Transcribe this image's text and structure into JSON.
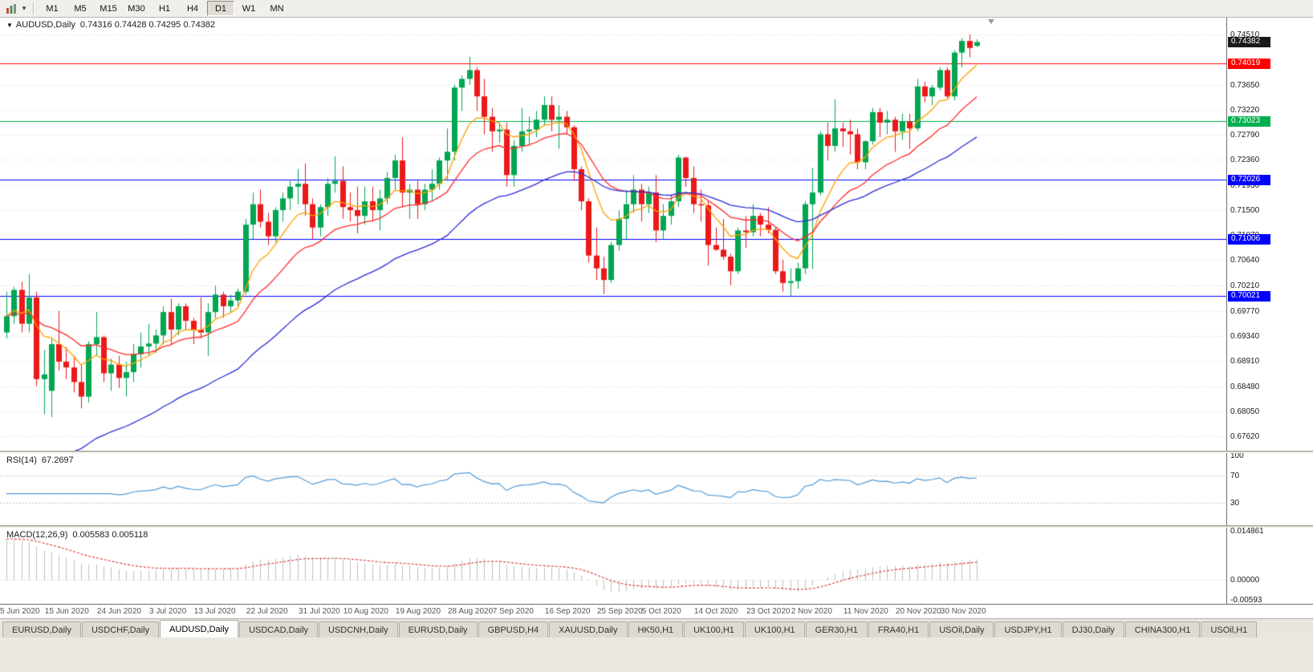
{
  "toolbar": {
    "timeframes": [
      "M1",
      "M5",
      "M15",
      "M30",
      "H1",
      "H4",
      "D1",
      "W1",
      "MN"
    ],
    "active_timeframe": "D1"
  },
  "chart_header": {
    "symbol": "AUDUSD,Daily",
    "ohlc": "0.74316 0.74428 0.74295 0.74382"
  },
  "price_axis": {
    "ticks": [
      "0.74510",
      "0.73650",
      "0.73220",
      "0.72790",
      "0.72360",
      "0.71930",
      "0.71500",
      "0.71070",
      "0.70640",
      "0.70210",
      "0.69770",
      "0.69340",
      "0.68910",
      "0.68480",
      "0.68050",
      "0.67620"
    ]
  },
  "price_tags": [
    {
      "label": "0.74382",
      "value": 0.74382,
      "bg": "#1A1A1A",
      "name": "current-price-tag",
      "interactable": false
    },
    {
      "label": "0.74019",
      "value": 0.74019,
      "bg": "#FF0000",
      "name": "red-resistance-line-tag",
      "interactable": true
    },
    {
      "label": "0.73023",
      "value": 0.73023,
      "bg": "#00B050",
      "name": "green-level-line-tag",
      "interactable": true
    },
    {
      "label": "0.72026",
      "value": 0.72026,
      "bg": "#0000FF",
      "name": "blue-level-line-tag-1",
      "interactable": true
    },
    {
      "label": "0.71006",
      "value": 0.71006,
      "bg": "#0000FF",
      "name": "blue-level-line-tag-2",
      "interactable": true
    },
    {
      "label": "0.70021",
      "value": 0.70021,
      "bg": "#0000FF",
      "name": "blue-support-line-tag",
      "interactable": true
    }
  ],
  "rsi_panel": {
    "title": "RSI(14)",
    "value": "67.2697",
    "line_color": "#4F9BD8",
    "levels": [
      70,
      30
    ],
    "axis": [
      {
        "label": "100",
        "value": 100
      },
      {
        "label": "70",
        "value": 70
      },
      {
        "label": "30",
        "value": 30
      }
    ]
  },
  "macd_panel": {
    "title": "MACD(12,26,9)",
    "values": "0.005583 0.005118",
    "histogram_color": "#C0C0C0",
    "signal_color": "#E03030",
    "scale_max": 0.014861,
    "scale_min": -0.00593,
    "axis": [
      {
        "label": "0.014861",
        "value": 0.014861
      },
      {
        "label": "0.00000",
        "value": 0
      },
      {
        "label": "-0.00593",
        "value": -0.00593
      }
    ]
  },
  "tabs": {
    "items": [
      "EURUSD,Daily",
      "USDCHF,Daily",
      "AUDUSD,Daily",
      "USDCAD,Daily",
      "USDCNH,Daily",
      "EURUSD,Daily",
      "GBPUSD,H4",
      "XAUUSD,Daily",
      "HK50,H1",
      "UK100,H1",
      "UK100,H1",
      "GER30,H1",
      "FRA40,H1",
      "USOil,Daily",
      "USDJPY,H1",
      "DJ30,Daily",
      "CHINA300,H1",
      "USOil,H1"
    ],
    "active_index": 2
  },
  "chart_data": {
    "type": "candlestick",
    "symbol": "AUDUSD",
    "timeframe": "Daily",
    "current_price": 0.74382,
    "bull_color": "#00A651",
    "bear_color": "#EB1919",
    "y_range": {
      "top": 0.748,
      "bottom": 0.67373
    },
    "horizontal_lines": [
      {
        "value": 0.74019,
        "color": "#FF0000"
      },
      {
        "value": 0.73023,
        "color": "#00B050"
      },
      {
        "value": 0.72026,
        "color": "#0000FF"
      },
      {
        "value": 0.71006,
        "color": "#0000FF"
      },
      {
        "value": 0.70021,
        "color": "#0000FF"
      }
    ],
    "moving_averages": [
      {
        "period": 8,
        "color": "#FFA000",
        "seed": null
      },
      {
        "period": 18,
        "color": "#FF2A2A",
        "seed": null
      },
      {
        "period": 40,
        "color": "#2C2CD8",
        "seed": 0.662
      }
    ],
    "indicators": {
      "rsi": {
        "period": 14,
        "current": 67.2697
      },
      "macd": {
        "fast": 12,
        "slow": 26,
        "signal": 9,
        "current": 0.005583,
        "current_signal": 0.005118,
        "seed_fast": 0.688,
        "seed_slow": 0.6755,
        "seed_signal": 0.0125
      }
    },
    "x_axis_labels": [
      {
        "index": 0,
        "label": "5 Jun 2020"
      },
      {
        "index": 6,
        "label": "15 Jun 2020"
      },
      {
        "index": 13,
        "label": "24 Jun 2020"
      },
      {
        "index": 20,
        "label": "3 Jul 2020"
      },
      {
        "index": 26,
        "label": "13 Jul 2020"
      },
      {
        "index": 33,
        "label": "22 Jul 2020"
      },
      {
        "index": 40,
        "label": "31 Jul 2020"
      },
      {
        "index": 46,
        "label": "10 Aug 2020"
      },
      {
        "index": 53,
        "label": "19 Aug 2020"
      },
      {
        "index": 60,
        "label": "28 Aug 2020"
      },
      {
        "index": 66,
        "label": "7 Sep 2020"
      },
      {
        "index": 73,
        "label": "16 Sep 2020"
      },
      {
        "index": 80,
        "label": "25 Sep 2020"
      },
      {
        "index": 86,
        "label": "5 Oct 2020"
      },
      {
        "index": 93,
        "label": "14 Oct 2020"
      },
      {
        "index": 100,
        "label": "23 Oct 2020"
      },
      {
        "index": 106,
        "label": "2 Nov 2020"
      },
      {
        "index": 113,
        "label": "11 Nov 2020"
      },
      {
        "index": 120,
        "label": "20 Nov 2020"
      },
      {
        "index": 126,
        "label": "30 Nov 2020"
      }
    ],
    "dates": [
      "2020-06-05",
      "2020-06-08",
      "2020-06-09",
      "2020-06-10",
      "2020-06-11",
      "2020-06-12",
      "2020-06-15",
      "2020-06-16",
      "2020-06-17",
      "2020-06-18",
      "2020-06-19",
      "2020-06-22",
      "2020-06-23",
      "2020-06-24",
      "2020-06-25",
      "2020-06-26",
      "2020-06-29",
      "2020-06-30",
      "2020-07-01",
      "2020-07-02",
      "2020-07-03",
      "2020-07-06",
      "2020-07-07",
      "2020-07-08",
      "2020-07-09",
      "2020-07-10",
      "2020-07-13",
      "2020-07-14",
      "2020-07-15",
      "2020-07-16",
      "2020-07-17",
      "2020-07-20",
      "2020-07-21",
      "2020-07-22",
      "2020-07-23",
      "2020-07-24",
      "2020-07-27",
      "2020-07-28",
      "2020-07-29",
      "2020-07-30",
      "2020-07-31",
      "2020-08-03",
      "2020-08-04",
      "2020-08-05",
      "2020-08-06",
      "2020-08-07",
      "2020-08-10",
      "2020-08-11",
      "2020-08-12",
      "2020-08-13",
      "2020-08-14",
      "2020-08-17",
      "2020-08-18",
      "2020-08-19",
      "2020-08-20",
      "2020-08-21",
      "2020-08-24",
      "2020-08-25",
      "2020-08-26",
      "2020-08-27",
      "2020-08-28",
      "2020-08-31",
      "2020-09-01",
      "2020-09-02",
      "2020-09-03",
      "2020-09-04",
      "2020-09-07",
      "2020-09-08",
      "2020-09-09",
      "2020-09-10",
      "2020-09-11",
      "2020-09-14",
      "2020-09-15",
      "2020-09-16",
      "2020-09-17",
      "2020-09-18",
      "2020-09-21",
      "2020-09-22",
      "2020-09-23",
      "2020-09-24",
      "2020-09-25",
      "2020-09-28",
      "2020-09-29",
      "2020-09-30",
      "2020-10-01",
      "2020-10-02",
      "2020-10-05",
      "2020-10-06",
      "2020-10-07",
      "2020-10-08",
      "2020-10-09",
      "2020-10-12",
      "2020-10-13",
      "2020-10-14",
      "2020-10-15",
      "2020-10-16",
      "2020-10-19",
      "2020-10-20",
      "2020-10-21",
      "2020-10-22",
      "2020-10-23",
      "2020-10-26",
      "2020-10-27",
      "2020-10-28",
      "2020-10-29",
      "2020-10-30",
      "2020-11-02",
      "2020-11-03",
      "2020-11-04",
      "2020-11-05",
      "2020-11-06",
      "2020-11-09",
      "2020-11-10",
      "2020-11-11",
      "2020-11-12",
      "2020-11-13",
      "2020-11-16",
      "2020-11-17",
      "2020-11-18",
      "2020-11-19",
      "2020-11-20",
      "2020-11-23",
      "2020-11-24",
      "2020-11-25",
      "2020-11-26",
      "2020-11-27",
      "2020-11-30",
      "2020-12-01",
      "2020-12-02",
      "2020-12-03",
      "2020-12-04"
    ],
    "ohlc": [
      [
        0.694,
        0.701,
        0.693,
        0.6968
      ],
      [
        0.6968,
        0.7018,
        0.6955,
        0.7013
      ],
      [
        0.7013,
        0.7027,
        0.694,
        0.6955
      ],
      [
        0.6955,
        0.704,
        0.694,
        0.7
      ],
      [
        0.7,
        0.701,
        0.6848,
        0.686
      ],
      [
        0.686,
        0.691,
        0.68,
        0.6868
      ],
      [
        0.684,
        0.693,
        0.6795,
        0.692
      ],
      [
        0.692,
        0.6977,
        0.6875,
        0.689
      ],
      [
        0.689,
        0.6915,
        0.686,
        0.688
      ],
      [
        0.688,
        0.69,
        0.6837,
        0.6855
      ],
      [
        0.6855,
        0.6885,
        0.681,
        0.683
      ],
      [
        0.683,
        0.6925,
        0.682,
        0.692
      ],
      [
        0.692,
        0.6975,
        0.69,
        0.6932
      ],
      [
        0.6932,
        0.6935,
        0.6855,
        0.687
      ],
      [
        0.687,
        0.6895,
        0.684,
        0.6885
      ],
      [
        0.6885,
        0.69,
        0.6845,
        0.6862
      ],
      [
        0.6862,
        0.689,
        0.683,
        0.6872
      ],
      [
        0.6872,
        0.692,
        0.6855,
        0.6903
      ],
      [
        0.6903,
        0.694,
        0.688,
        0.6916
      ],
      [
        0.6916,
        0.6955,
        0.69,
        0.6921
      ],
      [
        0.6921,
        0.6945,
        0.6905,
        0.6935
      ],
      [
        0.6935,
        0.6985,
        0.692,
        0.6975
      ],
      [
        0.6975,
        0.6998,
        0.692,
        0.6945
      ],
      [
        0.6945,
        0.699,
        0.6935,
        0.6985
      ],
      [
        0.6985,
        0.699,
        0.6945,
        0.696
      ],
      [
        0.696,
        0.6965,
        0.692,
        0.6945
      ],
      [
        0.6945,
        0.7,
        0.693,
        0.694
      ],
      [
        0.694,
        0.699,
        0.69,
        0.6975
      ],
      [
        0.6975,
        0.702,
        0.6965,
        0.7005
      ],
      [
        0.7005,
        0.701,
        0.6965,
        0.6985
      ],
      [
        0.6985,
        0.7005,
        0.6975,
        0.6995
      ],
      [
        0.6995,
        0.7015,
        0.6985,
        0.701
      ],
      [
        0.701,
        0.7135,
        0.7005,
        0.7125
      ],
      [
        0.7125,
        0.718,
        0.71,
        0.716
      ],
      [
        0.716,
        0.7185,
        0.712,
        0.713
      ],
      [
        0.713,
        0.7145,
        0.709,
        0.7105
      ],
      [
        0.7105,
        0.7155,
        0.7095,
        0.715
      ],
      [
        0.715,
        0.718,
        0.713,
        0.717
      ],
      [
        0.717,
        0.72,
        0.715,
        0.719
      ],
      [
        0.719,
        0.722,
        0.716,
        0.7195
      ],
      [
        0.7195,
        0.723,
        0.714,
        0.716
      ],
      [
        0.716,
        0.717,
        0.71,
        0.712
      ],
      [
        0.712,
        0.716,
        0.7105,
        0.7155
      ],
      [
        0.7155,
        0.7205,
        0.714,
        0.7195
      ],
      [
        0.7195,
        0.7242,
        0.718,
        0.72
      ],
      [
        0.72,
        0.7225,
        0.7135,
        0.7155
      ],
      [
        0.7155,
        0.718,
        0.713,
        0.715
      ],
      [
        0.715,
        0.719,
        0.711,
        0.714
      ],
      [
        0.714,
        0.719,
        0.7125,
        0.7165
      ],
      [
        0.7165,
        0.719,
        0.713,
        0.715
      ],
      [
        0.715,
        0.7185,
        0.7115,
        0.717
      ],
      [
        0.717,
        0.7215,
        0.716,
        0.7205
      ],
      [
        0.7205,
        0.7245,
        0.7185,
        0.7235
      ],
      [
        0.7235,
        0.7275,
        0.7155,
        0.718
      ],
      [
        0.718,
        0.7195,
        0.7135,
        0.7185
      ],
      [
        0.7185,
        0.72,
        0.7135,
        0.716
      ],
      [
        0.716,
        0.7195,
        0.715,
        0.7185
      ],
      [
        0.7185,
        0.722,
        0.7165,
        0.7195
      ],
      [
        0.7195,
        0.724,
        0.7185,
        0.7235
      ],
      [
        0.7235,
        0.729,
        0.72,
        0.725
      ],
      [
        0.725,
        0.7365,
        0.7235,
        0.736
      ],
      [
        0.736,
        0.7381,
        0.732,
        0.7375
      ],
      [
        0.7375,
        0.7413,
        0.7365,
        0.739
      ],
      [
        0.739,
        0.7395,
        0.732,
        0.7345
      ],
      [
        0.7345,
        0.7375,
        0.728,
        0.731
      ],
      [
        0.731,
        0.7325,
        0.725,
        0.7285
      ],
      [
        0.7285,
        0.73,
        0.7265,
        0.7288
      ],
      [
        0.7288,
        0.73,
        0.719,
        0.721
      ],
      [
        0.721,
        0.727,
        0.719,
        0.726
      ],
      [
        0.726,
        0.7325,
        0.725,
        0.7285
      ],
      [
        0.7285,
        0.731,
        0.726,
        0.7288
      ],
      [
        0.7288,
        0.732,
        0.7275,
        0.7305
      ],
      [
        0.7305,
        0.7345,
        0.7295,
        0.733
      ],
      [
        0.733,
        0.7345,
        0.7285,
        0.7305
      ],
      [
        0.7305,
        0.733,
        0.7255,
        0.731
      ],
      [
        0.731,
        0.732,
        0.728,
        0.7292
      ],
      [
        0.7292,
        0.7295,
        0.72,
        0.722
      ],
      [
        0.722,
        0.7225,
        0.715,
        0.7165
      ],
      [
        0.7165,
        0.717,
        0.706,
        0.7072
      ],
      [
        0.7072,
        0.712,
        0.703,
        0.705
      ],
      [
        0.705,
        0.707,
        0.7006,
        0.703
      ],
      [
        0.703,
        0.7095,
        0.7025,
        0.709
      ],
      [
        0.709,
        0.715,
        0.708,
        0.7135
      ],
      [
        0.7135,
        0.7185,
        0.71,
        0.716
      ],
      [
        0.716,
        0.721,
        0.7145,
        0.7185
      ],
      [
        0.7185,
        0.7195,
        0.713,
        0.716
      ],
      [
        0.716,
        0.719,
        0.7145,
        0.718
      ],
      [
        0.718,
        0.721,
        0.7095,
        0.7115
      ],
      [
        0.7115,
        0.716,
        0.71,
        0.714
      ],
      [
        0.714,
        0.7175,
        0.7125,
        0.7165
      ],
      [
        0.7165,
        0.7245,
        0.7155,
        0.724
      ],
      [
        0.724,
        0.7242,
        0.719,
        0.7205
      ],
      [
        0.7205,
        0.7225,
        0.7145,
        0.716
      ],
      [
        0.716,
        0.7185,
        0.713,
        0.7158
      ],
      [
        0.7158,
        0.7165,
        0.7055,
        0.709
      ],
      [
        0.709,
        0.712,
        0.708,
        0.7082
      ],
      [
        0.7082,
        0.7135,
        0.7065,
        0.707
      ],
      [
        0.707,
        0.7075,
        0.7021,
        0.7045
      ],
      [
        0.7045,
        0.712,
        0.704,
        0.7115
      ],
      [
        0.7115,
        0.714,
        0.7085,
        0.7112
      ],
      [
        0.7112,
        0.716,
        0.7105,
        0.714
      ],
      [
        0.714,
        0.7145,
        0.7105,
        0.7125
      ],
      [
        0.7125,
        0.7155,
        0.711,
        0.7116
      ],
      [
        0.7116,
        0.712,
        0.704,
        0.7045
      ],
      [
        0.7045,
        0.7065,
        0.701,
        0.7025
      ],
      [
        0.7025,
        0.705,
        0.7002,
        0.7028
      ],
      [
        0.7028,
        0.706,
        0.7015,
        0.705
      ],
      [
        0.705,
        0.7165,
        0.704,
        0.716
      ],
      [
        0.716,
        0.7222,
        0.7049,
        0.718
      ],
      [
        0.718,
        0.7285,
        0.7175,
        0.728
      ],
      [
        0.728,
        0.73,
        0.7235,
        0.726
      ],
      [
        0.726,
        0.734,
        0.725,
        0.729
      ],
      [
        0.729,
        0.73,
        0.7258,
        0.7285
      ],
      [
        0.7285,
        0.7305,
        0.7245,
        0.728
      ],
      [
        0.728,
        0.729,
        0.722,
        0.7232
      ],
      [
        0.7232,
        0.727,
        0.722,
        0.7268
      ],
      [
        0.7268,
        0.7325,
        0.7262,
        0.7318
      ],
      [
        0.7318,
        0.7325,
        0.7275,
        0.73
      ],
      [
        0.73,
        0.732,
        0.728,
        0.7305
      ],
      [
        0.7305,
        0.731,
        0.725,
        0.7285
      ],
      [
        0.7285,
        0.7315,
        0.727,
        0.7302
      ],
      [
        0.7302,
        0.7315,
        0.7255,
        0.729
      ],
      [
        0.729,
        0.7375,
        0.7285,
        0.7362
      ],
      [
        0.7362,
        0.737,
        0.7335,
        0.7345
      ],
      [
        0.7345,
        0.7365,
        0.733,
        0.736
      ],
      [
        0.736,
        0.7395,
        0.7355,
        0.739
      ],
      [
        0.739,
        0.7395,
        0.734,
        0.7345
      ],
      [
        0.7345,
        0.7424,
        0.7338,
        0.742
      ],
      [
        0.742,
        0.7445,
        0.7395,
        0.744
      ],
      [
        0.744,
        0.7451,
        0.7412,
        0.7428
      ],
      [
        0.74316,
        0.74428,
        0.74295,
        0.74382
      ]
    ]
  }
}
